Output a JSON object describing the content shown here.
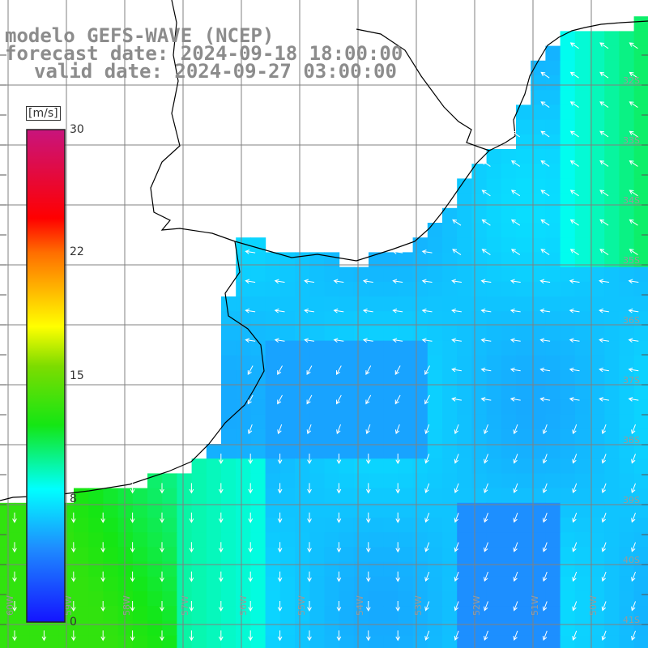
{
  "title": {
    "line1": "modelo GEFS-WAVE (NCEP)",
    "line2": "forecast date: 2024-09-18 18:00:00",
    "line3": "valid date: 2024-09-27 03:00:00"
  },
  "colorbar": {
    "unit": "[m/s]",
    "ticks": [
      "30",
      "22",
      "15",
      "8",
      "0"
    ],
    "tick_values": [
      30,
      22,
      15,
      8,
      0
    ],
    "range": [
      0,
      30
    ]
  },
  "map": {
    "lat_labels": [
      "32S",
      "33S",
      "34S",
      "35S",
      "36S",
      "37S",
      "38S",
      "39S",
      "40S",
      "41S"
    ],
    "lat_values": [
      -32,
      -33,
      -34,
      -35,
      -36,
      -37,
      -38,
      -39,
      -40,
      -41
    ],
    "lon_labels": [
      "60W",
      "59W",
      "58W",
      "57W",
      "56W",
      "55W",
      "54W",
      "53W",
      "52W",
      "51W",
      "50W"
    ],
    "lon_values": [
      -60,
      -59,
      -58,
      -57,
      -56,
      -55,
      -54,
      -53,
      -52,
      -51,
      -50
    ],
    "colors": {
      "land": "#ffffff",
      "coast": "#000000",
      "grid": "#808080",
      "arrow": "#ffffff"
    },
    "icons": [
      "wind-arrow-icon"
    ]
  }
}
